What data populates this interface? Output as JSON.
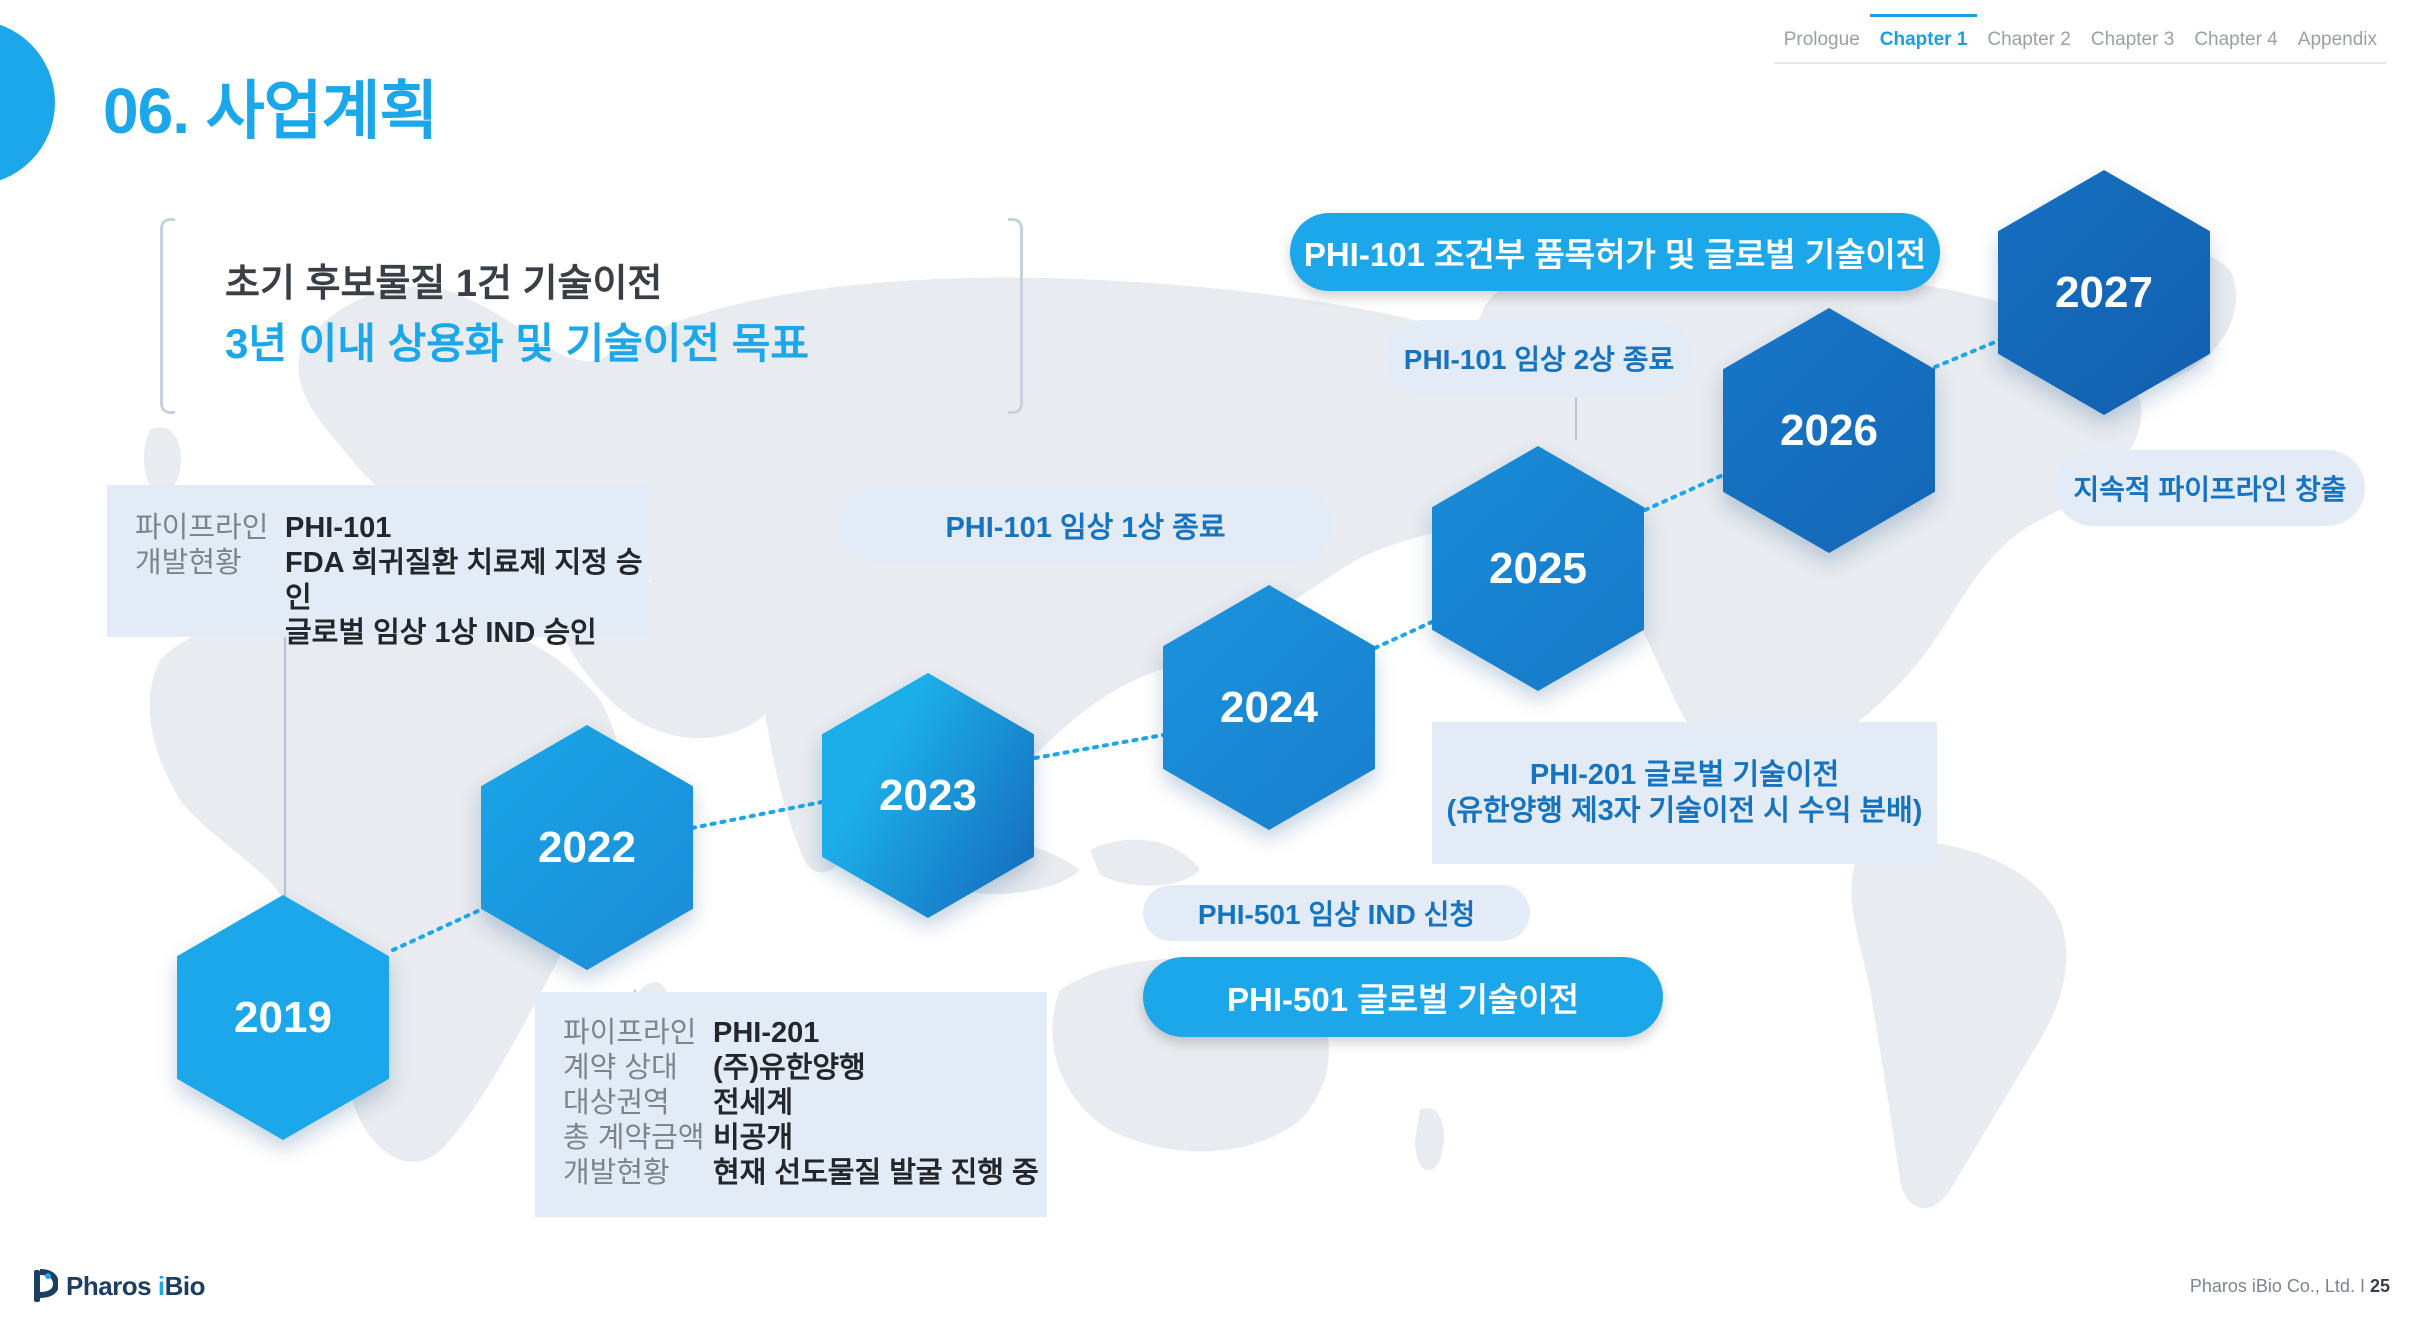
{
  "nav": {
    "items": [
      "Prologue",
      "Chapter 1",
      "Chapter 2",
      "Chapter 3",
      "Chapter 4",
      "Appendix"
    ],
    "active_index": 1
  },
  "title": "06. 사업계획",
  "summary": {
    "line1": "초기 후보물질 1건 기술이전",
    "line2": "3년 이내 상용화 및 기술이전 목표"
  },
  "years": [
    "2019",
    "2022",
    "2023",
    "2024",
    "2025",
    "2026",
    "2027"
  ],
  "box_phi101": {
    "labels": [
      "파이프라인",
      "개발현황",
      ""
    ],
    "values": [
      "PHI-101",
      "FDA 희귀질환 치료제 지정 승인",
      "글로벌 임상 1상 IND 승인"
    ]
  },
  "box_phi201": {
    "labels": [
      "파이프라인",
      "계약 상대",
      "대상권역",
      "총 계약금액",
      "개발현황"
    ],
    "values": [
      "PHI-201",
      "(주)유한양행",
      "전세계",
      "비공개",
      "현재 선도물질 발굴 진행 중"
    ]
  },
  "milestones": {
    "phi101_phase1": "PHI-101 임상 1상 종료",
    "phi501_ind": "PHI-501 임상 IND 신청",
    "phi501_transfer": "PHI-501 글로벌 기술이전",
    "phi201_transfer_l1": "PHI-201 글로벌 기술이전",
    "phi201_transfer_l2": "(유한양행 제3자 기술이전 시 수익 분배)",
    "phi101_phase2": "PHI-101 임상 2상 종료",
    "phi101_approval": "PHI-101 조건부 품목허가 및 글로벌 기술이전",
    "pipeline": "지속적 파이프라인 창출"
  },
  "footer": {
    "logo_text_a": "Pharos ",
    "logo_text_i": "i",
    "logo_text_b": "Bio",
    "company": "Pharos iBio Co., Ltd.",
    "separator": " I ",
    "page": "25"
  },
  "colors": {
    "accent": "#1ba7ea",
    "dark_blue": "#1673c0",
    "box_bg": "#e3ecf6",
    "map": "#e8ebef"
  }
}
